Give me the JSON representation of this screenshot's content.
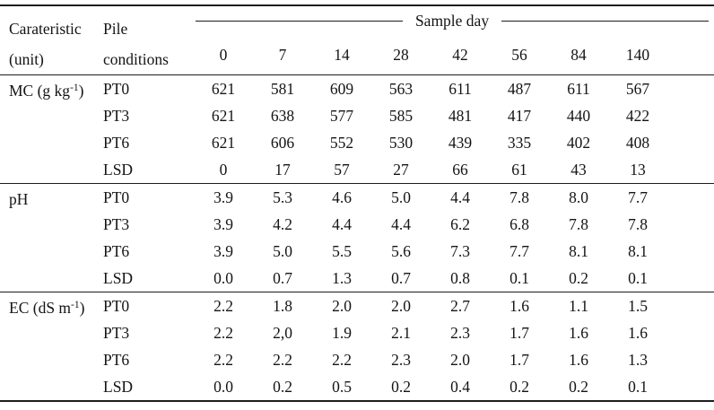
{
  "table": {
    "header": {
      "col1_line1": "Carateristic",
      "col1_line2": "(unit)",
      "col2_line1": "Pile",
      "col2_line2": "conditions",
      "spanner": "Sample day",
      "days": [
        "0",
        "7",
        "14",
        "28",
        "42",
        "56",
        "84",
        "140"
      ]
    },
    "sections": [
      {
        "label_base": "MC (g kg",
        "label_sup": "-1",
        "label_close": ")",
        "rows": [
          {
            "condition": "PT0",
            "values": [
              "621",
              "581",
              "609",
              "563",
              "611",
              "487",
              "611",
              "567"
            ]
          },
          {
            "condition": "PT3",
            "values": [
              "621",
              "638",
              "577",
              "585",
              "481",
              "417",
              "440",
              "422"
            ]
          },
          {
            "condition": "PT6",
            "values": [
              "621",
              "606",
              "552",
              "530",
              "439",
              "335",
              "402",
              "408"
            ]
          },
          {
            "condition": "LSD",
            "values": [
              "0",
              "17",
              "57",
              "27",
              "66",
              "61",
              "43",
              "13"
            ]
          }
        ]
      },
      {
        "label_base": "pH",
        "label_sup": "",
        "label_close": "",
        "rows": [
          {
            "condition": "PT0",
            "values": [
              "3.9",
              "5.3",
              "4.6",
              "5.0",
              "4.4",
              "7.8",
              "8.0",
              "7.7"
            ]
          },
          {
            "condition": "PT3",
            "values": [
              "3.9",
              "4.2",
              "4.4",
              "4.4",
              "6.2",
              "6.8",
              "7.8",
              "7.8"
            ]
          },
          {
            "condition": "PT6",
            "values": [
              "3.9",
              "5.0",
              "5.5",
              "5.6",
              "7.3",
              "7.7",
              "8.1",
              "8.1"
            ]
          },
          {
            "condition": "LSD",
            "values": [
              "0.0",
              "0.7",
              "1.3",
              "0.7",
              "0.8",
              "0.1",
              "0.2",
              "0.1"
            ]
          }
        ]
      },
      {
        "label_base": "EC (dS m",
        "label_sup": "-1",
        "label_close": ")",
        "rows": [
          {
            "condition": "PT0",
            "values": [
              "2.2",
              "1.8",
              "2.0",
              "2.0",
              "2.7",
              "1.6",
              "1.1",
              "1.5"
            ]
          },
          {
            "condition": "PT3",
            "values": [
              "2.2",
              "2,0",
              "1.9",
              "2.1",
              "2.3",
              "1.7",
              "1.6",
              "1.6"
            ]
          },
          {
            "condition": "PT6",
            "values": [
              "2.2",
              "2.2",
              "2.2",
              "2.3",
              "2.0",
              "1.7",
              "1.6",
              "1.3"
            ]
          },
          {
            "condition": "LSD",
            "values": [
              "0.0",
              "0.2",
              "0.5",
              "0.2",
              "0.4",
              "0.2",
              "0.2",
              "0.1"
            ]
          }
        ]
      }
    ]
  }
}
